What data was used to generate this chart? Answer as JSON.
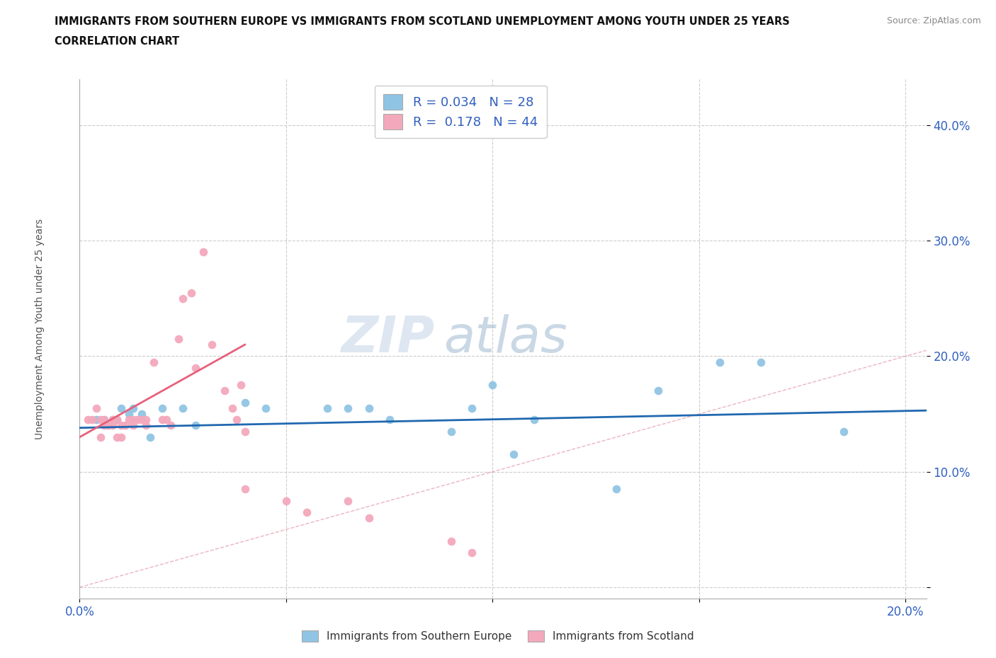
{
  "title_line1": "IMMIGRANTS FROM SOUTHERN EUROPE VS IMMIGRANTS FROM SCOTLAND UNEMPLOYMENT AMONG YOUTH UNDER 25 YEARS",
  "title_line2": "CORRELATION CHART",
  "source_text": "Source: ZipAtlas.com",
  "watermark_zip": "ZIP",
  "watermark_atlas": "atlas",
  "xlim": [
    0.0,
    0.205
  ],
  "ylim": [
    -0.01,
    0.44
  ],
  "xticks": [
    0.0,
    0.05,
    0.1,
    0.15,
    0.2
  ],
  "yticks": [
    0.0,
    0.1,
    0.2,
    0.3,
    0.4
  ],
  "xlabel_labels": [
    "0.0%",
    "",
    "",
    "",
    "20.0%"
  ],
  "ylabel_labels": [
    "",
    "10.0%",
    "20.0%",
    "30.0%",
    "40.0%"
  ],
  "color_blue": "#90c4e4",
  "color_pink": "#f4a8bc",
  "color_blue_line": "#2068b0",
  "color_pink_line": "#e8607a",
  "color_diag": "#e8a0b0",
  "blue_scatter_x": [
    0.004,
    0.006,
    0.008,
    0.009,
    0.01,
    0.012,
    0.013,
    0.015,
    0.017,
    0.02,
    0.025,
    0.028,
    0.04,
    0.045,
    0.06,
    0.065,
    0.07,
    0.075,
    0.09,
    0.095,
    0.1,
    0.105,
    0.11,
    0.13,
    0.14,
    0.155,
    0.165,
    0.185
  ],
  "blue_scatter_y": [
    0.145,
    0.145,
    0.145,
    0.145,
    0.155,
    0.15,
    0.155,
    0.15,
    0.13,
    0.155,
    0.155,
    0.14,
    0.16,
    0.155,
    0.155,
    0.155,
    0.155,
    0.145,
    0.135,
    0.155,
    0.175,
    0.115,
    0.145,
    0.085,
    0.17,
    0.195,
    0.195,
    0.135
  ],
  "pink_scatter_x": [
    0.002,
    0.003,
    0.004,
    0.005,
    0.005,
    0.006,
    0.006,
    0.007,
    0.008,
    0.008,
    0.009,
    0.009,
    0.01,
    0.01,
    0.011,
    0.012,
    0.013,
    0.013,
    0.014,
    0.015,
    0.016,
    0.016,
    0.018,
    0.02,
    0.021,
    0.022,
    0.024,
    0.025,
    0.027,
    0.028,
    0.03,
    0.032,
    0.035,
    0.037,
    0.038,
    0.039,
    0.04,
    0.04,
    0.05,
    0.055,
    0.065,
    0.07,
    0.09,
    0.095
  ],
  "pink_scatter_y": [
    0.145,
    0.145,
    0.155,
    0.13,
    0.145,
    0.14,
    0.145,
    0.14,
    0.145,
    0.14,
    0.13,
    0.145,
    0.13,
    0.14,
    0.14,
    0.145,
    0.14,
    0.145,
    0.145,
    0.145,
    0.145,
    0.14,
    0.195,
    0.145,
    0.145,
    0.14,
    0.215,
    0.25,
    0.255,
    0.19,
    0.29,
    0.21,
    0.17,
    0.155,
    0.145,
    0.175,
    0.085,
    0.135,
    0.075,
    0.065,
    0.075,
    0.06,
    0.04,
    0.03
  ],
  "blue_trend_x": [
    0.0,
    0.205
  ],
  "blue_trend_y": [
    0.138,
    0.153
  ],
  "pink_trend_x": [
    0.0,
    0.04
  ],
  "pink_trend_y": [
    0.13,
    0.21
  ],
  "legend_r1": "R = 0.034",
  "legend_n1": "N = 28",
  "legend_r2": "R =  0.178",
  "legend_n2": "N = 44",
  "bottom_label1": "Immigrants from Southern Europe",
  "bottom_label2": "Immigrants from Scotland",
  "ylabel": "Unemployment Among Youth under 25 years"
}
